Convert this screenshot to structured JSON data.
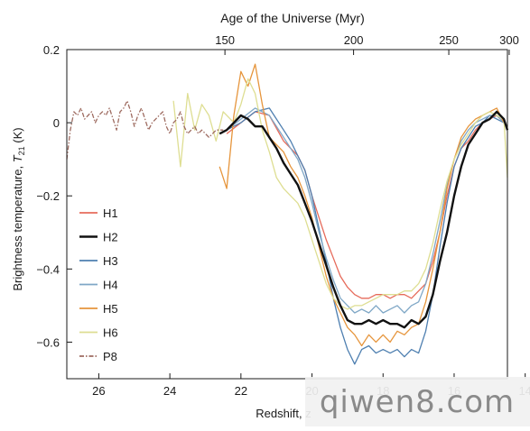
{
  "chart_data": {
    "type": "line",
    "title": "",
    "top_axis_label": "Age of the Universe (Myr)",
    "xlabel": "Redshift, z",
    "ylabel": "Brightness temperature, T21 (K)",
    "ylabel_main": "Brightness temperature, ",
    "ylabel_symbol": "T",
    "ylabel_sub": "21",
    "ylabel_unit": " (K)",
    "x_reversed": true,
    "xlim": [
      26.9,
      14.5
    ],
    "ylim": [
      -0.7,
      0.2
    ],
    "x_ticks": [
      26,
      24,
      22,
      20,
      18,
      16,
      14
    ],
    "x_tick_labels": [
      "26",
      "24",
      "22",
      "20",
      "18",
      "16",
      "14"
    ],
    "y_ticks": [
      0.2,
      0,
      -0.2,
      -0.4,
      -0.6
    ],
    "y_tick_labels": [
      "0.2",
      "0",
      "−0.2",
      "−0.4",
      "−0.6"
    ],
    "top_ticks": [
      {
        "label": "150",
        "z": 22.45
      },
      {
        "label": "200",
        "z": 18.83
      },
      {
        "label": "250",
        "z": 16.15
      },
      {
        "label": "300",
        "z": 14.45
      }
    ],
    "grid": false,
    "legend_position": "bottom-left",
    "series": [
      {
        "name": "H1",
        "color": "#e66b5b",
        "dash": "",
        "width": 1.3,
        "x": [
          22.4,
          22,
          21.6,
          21.2,
          20.8,
          20.6,
          20.4,
          20.2,
          20,
          19.8,
          19.6,
          19.4,
          19.2,
          19,
          18.8,
          18.6,
          18.4,
          18.2,
          18,
          17.8,
          17.6,
          17.4,
          17.2,
          17,
          16.8,
          16.6,
          16.4,
          16.2,
          16,
          15.8,
          15.6,
          15.4,
          15.2,
          15,
          14.8,
          14.6
        ],
        "y": [
          -0.03,
          0,
          0.03,
          0.02,
          -0.05,
          -0.07,
          -0.09,
          -0.13,
          -0.2,
          -0.26,
          -0.32,
          -0.37,
          -0.42,
          -0.45,
          -0.47,
          -0.48,
          -0.48,
          -0.47,
          -0.47,
          -0.48,
          -0.47,
          -0.47,
          -0.48,
          -0.46,
          -0.44,
          -0.38,
          -0.3,
          -0.2,
          -0.12,
          -0.07,
          -0.05,
          -0.02,
          0,
          0.01,
          0.02,
          0
        ]
      },
      {
        "name": "H2",
        "color": "#111111",
        "dash": "",
        "width": 2.4,
        "x": [
          22.6,
          22.4,
          22.2,
          22,
          21.8,
          21.6,
          21.4,
          21.2,
          21,
          20.8,
          20.6,
          20.4,
          20.2,
          20,
          19.8,
          19.6,
          19.4,
          19.2,
          19,
          18.8,
          18.6,
          18.4,
          18.2,
          18,
          17.8,
          17.6,
          17.4,
          17.2,
          17,
          16.8,
          16.6,
          16.4,
          16.2,
          16,
          15.8,
          15.6,
          15.4,
          15.2,
          15,
          14.8,
          14.6,
          14.5
        ],
        "y": [
          -0.03,
          -0.02,
          0,
          0.02,
          0.01,
          -0.01,
          -0.01,
          -0.04,
          -0.07,
          -0.11,
          -0.14,
          -0.17,
          -0.22,
          -0.27,
          -0.33,
          -0.39,
          -0.45,
          -0.5,
          -0.54,
          -0.55,
          -0.55,
          -0.54,
          -0.55,
          -0.54,
          -0.55,
          -0.55,
          -0.56,
          -0.54,
          -0.55,
          -0.53,
          -0.47,
          -0.38,
          -0.3,
          -0.2,
          -0.12,
          -0.06,
          -0.03,
          0,
          0.01,
          0.03,
          0.01,
          -0.02
        ]
      },
      {
        "name": "H3",
        "color": "#4e7fb0",
        "dash": "",
        "width": 1.3,
        "x": [
          22.4,
          22,
          21.6,
          21.2,
          20.8,
          20.6,
          20.4,
          20.2,
          20,
          19.8,
          19.6,
          19.4,
          19.2,
          19,
          18.8,
          18.6,
          18.4,
          18.2,
          18,
          17.8,
          17.6,
          17.4,
          17.2,
          17,
          16.8,
          16.6,
          16.4,
          16.2,
          16,
          15.8,
          15.6,
          15.4,
          15.2,
          15,
          14.8,
          14.6
        ],
        "y": [
          -0.02,
          0,
          0.03,
          0.04,
          -0.02,
          -0.05,
          -0.09,
          -0.13,
          -0.2,
          -0.29,
          -0.38,
          -0.48,
          -0.56,
          -0.62,
          -0.66,
          -0.62,
          -0.61,
          -0.63,
          -0.62,
          -0.63,
          -0.62,
          -0.64,
          -0.62,
          -0.63,
          -0.57,
          -0.47,
          -0.34,
          -0.22,
          -0.12,
          -0.07,
          -0.04,
          -0.01,
          0,
          0.02,
          0.01,
          0
        ]
      },
      {
        "name": "H4",
        "color": "#7fa7c6",
        "dash": "",
        "width": 1.3,
        "x": [
          22.4,
          22,
          21.6,
          21.2,
          20.8,
          20.6,
          20.4,
          20.2,
          20,
          19.8,
          19.6,
          19.4,
          19.2,
          19,
          18.8,
          18.6,
          18.4,
          18.2,
          18,
          17.8,
          17.6,
          17.4,
          17.2,
          17,
          16.8,
          16.6,
          16.4,
          16.2,
          16,
          15.8,
          15.6,
          15.4,
          15.2,
          15,
          14.8,
          14.6
        ],
        "y": [
          -0.02,
          0.01,
          0.04,
          0.02,
          -0.04,
          -0.07,
          -0.1,
          -0.15,
          -0.22,
          -0.3,
          -0.37,
          -0.43,
          -0.48,
          -0.5,
          -0.52,
          -0.51,
          -0.52,
          -0.5,
          -0.52,
          -0.51,
          -0.5,
          -0.52,
          -0.5,
          -0.49,
          -0.44,
          -0.36,
          -0.27,
          -0.17,
          -0.1,
          -0.05,
          -0.02,
          0,
          0.01,
          0.02,
          0.02,
          0
        ]
      },
      {
        "name": "H5",
        "color": "#e6953c",
        "dash": "",
        "width": 1.3,
        "x": [
          22.6,
          22.4,
          22.2,
          22,
          21.8,
          21.6,
          21.4,
          21.2,
          21,
          20.8,
          20.6,
          20.4,
          20.2,
          20,
          19.8,
          19.6,
          19.4,
          19.2,
          19,
          18.8,
          18.6,
          18.4,
          18.2,
          18,
          17.8,
          17.6,
          17.4,
          17.2,
          17,
          16.8,
          16.6,
          16.4,
          16.2,
          16,
          15.8,
          15.6,
          15.4,
          15.2,
          15,
          14.8,
          14.6
        ],
        "y": [
          -0.12,
          -0.18,
          0.02,
          0.14,
          0.1,
          0.16,
          0.05,
          -0.04,
          -0.06,
          -0.08,
          -0.12,
          -0.15,
          -0.2,
          -0.26,
          -0.34,
          -0.42,
          -0.48,
          -0.52,
          -0.56,
          -0.58,
          -0.61,
          -0.58,
          -0.6,
          -0.58,
          -0.6,
          -0.57,
          -0.58,
          -0.56,
          -0.55,
          -0.49,
          -0.4,
          -0.3,
          -0.18,
          -0.1,
          -0.04,
          -0.01,
          0.01,
          0.02,
          0.03,
          0.04,
          0
        ]
      },
      {
        "name": "H6",
        "color": "#dede92",
        "dash": "",
        "width": 1.3,
        "x": [
          23.9,
          23.7,
          23.5,
          23.3,
          23.1,
          22.9,
          22.7,
          22.5,
          22.2,
          22,
          21.8,
          21.6,
          21.4,
          21.2,
          21,
          20.8,
          20.6,
          20.4,
          20.2,
          20,
          19.8,
          19.6,
          19.4,
          19.2,
          19,
          18.8,
          18.6,
          18.4,
          18.2,
          18,
          17.8,
          17.6,
          17.4,
          17.2,
          17,
          16.8,
          16.6,
          16.4,
          16.2,
          16,
          15.8,
          15.6,
          15.4,
          15.2,
          15,
          14.8,
          14.6,
          14.5
        ],
        "y": [
          0.06,
          -0.12,
          0.08,
          -0.02,
          0.05,
          0.02,
          -0.05,
          0.03,
          0,
          0.05,
          0.12,
          0.08,
          -0.02,
          -0.08,
          -0.15,
          -0.18,
          -0.2,
          -0.22,
          -0.26,
          -0.32,
          -0.38,
          -0.44,
          -0.48,
          -0.5,
          -0.51,
          -0.5,
          -0.5,
          -0.49,
          -0.48,
          -0.47,
          -0.47,
          -0.47,
          -0.46,
          -0.46,
          -0.44,
          -0.4,
          -0.33,
          -0.24,
          -0.16,
          -0.1,
          -0.06,
          -0.03,
          0,
          0.02,
          0.03,
          0.02,
          0.01,
          -0.15
        ]
      },
      {
        "name": "P8",
        "color": "#9e6b60",
        "dash": "5,2,1.5,2",
        "width": 1.3,
        "x": [
          26.9,
          26.8,
          26.7,
          26.6,
          26.5,
          26.4,
          26.3,
          26.2,
          26.1,
          26,
          25.9,
          25.8,
          25.7,
          25.6,
          25.5,
          25.4,
          25.3,
          25.2,
          25.1,
          25,
          24.9,
          24.8,
          24.7,
          24.6,
          24.5,
          24.4,
          24.3,
          24.2,
          24.1,
          24,
          23.9,
          23.8,
          23.7,
          23.6,
          23.5,
          23.4,
          23.3,
          23.2,
          23.1,
          23,
          22.9,
          22.8,
          22.7,
          22.6,
          22.5
        ],
        "y": [
          -0.1,
          -0.02,
          0.03,
          0.02,
          0.04,
          0.01,
          0.02,
          0.03,
          0,
          0.02,
          0.03,
          0.02,
          0.04,
          0.01,
          -0.02,
          0.03,
          0.04,
          0.06,
          0.03,
          -0.01,
          0.02,
          0.04,
          0.01,
          -0.02,
          0,
          0.01,
          0.02,
          0.03,
          -0.01,
          -0.03,
          0,
          0.01,
          0.03,
          -0.01,
          -0.03,
          -0.02,
          -0.01,
          -0.03,
          -0.02,
          -0.03,
          -0.04,
          -0.03,
          -0.02,
          -0.02,
          -0.02
        ]
      }
    ]
  },
  "watermark": {
    "text": "qiwen8.com"
  }
}
